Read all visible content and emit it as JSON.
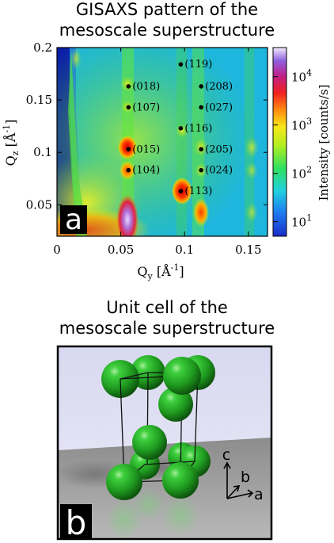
{
  "panel_a": {
    "title_line1": "GISAXS pattern of the",
    "title_line2": "mesoscale superstructure",
    "label": "a"
  },
  "panel_b": {
    "title_line1": "Unit cell of the",
    "title_line2": "mesoscale superstructure",
    "label": "b",
    "axis_c": "c",
    "axis_b": "b",
    "axis_a": "a"
  },
  "chart_data": {
    "type": "heatmap",
    "xlabel": "Q",
    "xlabel_sub": "y",
    "xlabel_unit": "[Å",
    "xlabel_sup": "-1",
    "ylabel": "Q",
    "ylabel_sub": "z",
    "ylabel_unit": "[Å",
    "ylabel_sup": "-1",
    "xlim": [
      0,
      0.165
    ],
    "ylim": [
      0.02,
      0.2
    ],
    "x_ticks": [
      "0",
      "0.05",
      "0.1",
      "0.15"
    ],
    "y_ticks": [
      "0.05",
      "0.1",
      "0.15",
      "0.2"
    ],
    "colorbar_label": "Intensity [counts/s]",
    "colorbar_ticks": [
      {
        "base": "10",
        "exp": "4",
        "value": 10000
      },
      {
        "base": "10",
        "exp": "3",
        "value": 1000
      },
      {
        "base": "10",
        "exp": "2",
        "value": 100
      },
      {
        "base": "10",
        "exp": "1",
        "value": 10
      }
    ],
    "colorbar_range": [
      5,
      40000
    ],
    "colorbar_scale": "log",
    "peaks": [
      {
        "label": "(119)",
        "qy": 0.097,
        "qz": 0.184
      },
      {
        "label": "(018)",
        "qy": 0.056,
        "qz": 0.163
      },
      {
        "label": "(208)",
        "qy": 0.113,
        "qz": 0.163
      },
      {
        "label": "(107)",
        "qy": 0.056,
        "qz": 0.143
      },
      {
        "label": "(027)",
        "qy": 0.113,
        "qz": 0.143
      },
      {
        "label": "(116)",
        "qy": 0.097,
        "qz": 0.123
      },
      {
        "label": "(015)",
        "qy": 0.056,
        "qz": 0.103
      },
      {
        "label": "(205)",
        "qy": 0.113,
        "qz": 0.103
      },
      {
        "label": "(104)",
        "qy": 0.056,
        "qz": 0.083
      },
      {
        "label": "(024)",
        "qy": 0.113,
        "qz": 0.083
      },
      {
        "label": "(113)",
        "qy": 0.097,
        "qz": 0.063
      }
    ]
  }
}
